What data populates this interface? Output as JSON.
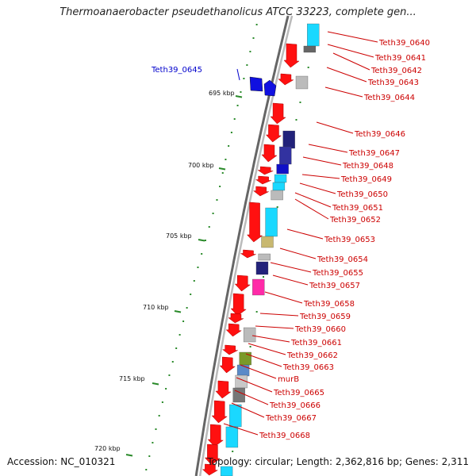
{
  "title": "Thermoanaerobacter pseudethanolicus ATCC 33223, complete gen...",
  "footer": {
    "accession": "Accession: NC_010321",
    "summary": "Topology: circular; Length: 2,362,816 bp; Genes: 2,311"
  },
  "colors": {
    "label_red": "#cc0000",
    "label_blue": "#0000cc",
    "gene_red": "#ff1010",
    "cyan": "#1ad8ff",
    "gray": "#bbbbbb",
    "navy": "#22227a",
    "magenta": "#ff2aa8",
    "olive": "#7a9a2a",
    "backbone": "#777777",
    "tick_green": "#2a8a2a"
  },
  "ticks": [
    {
      "label": "695 kbp"
    },
    {
      "label": "700 kbp"
    },
    {
      "label": "705 kbp"
    },
    {
      "label": "710 kbp"
    },
    {
      "label": "715 kbp"
    },
    {
      "label": "720 kbp"
    }
  ],
  "gene_labels": [
    {
      "text": "Teth39_0640",
      "color": "red"
    },
    {
      "text": "Teth39_0641",
      "color": "red"
    },
    {
      "text": "Teth39_0642",
      "color": "red"
    },
    {
      "text": "Teth39_0643",
      "color": "red"
    },
    {
      "text": "Teth39_0644",
      "color": "red"
    },
    {
      "text": "Teth39_0645",
      "color": "blue"
    },
    {
      "text": "Teth39_0646",
      "color": "red"
    },
    {
      "text": "Teth39_0647",
      "color": "red"
    },
    {
      "text": "Teth39_0648",
      "color": "red"
    },
    {
      "text": "Teth39_0649",
      "color": "red"
    },
    {
      "text": "Teth39_0650",
      "color": "red"
    },
    {
      "text": "Teth39_0651",
      "color": "red"
    },
    {
      "text": "Teth39_0652",
      "color": "red"
    },
    {
      "text": "Teth39_0653",
      "color": "red"
    },
    {
      "text": "Teth39_0654",
      "color": "red"
    },
    {
      "text": "Teth39_0655",
      "color": "red"
    },
    {
      "text": "Teth39_0657",
      "color": "red"
    },
    {
      "text": "Teth39_0658",
      "color": "red"
    },
    {
      "text": "Teth39_0659",
      "color": "red"
    },
    {
      "text": "Teth39_0660",
      "color": "red"
    },
    {
      "text": "Teth39_0661",
      "color": "red"
    },
    {
      "text": "Teth39_0662",
      "color": "red"
    },
    {
      "text": "Teth39_0663",
      "color": "red"
    },
    {
      "text": "murB",
      "color": "red"
    },
    {
      "text": "Teth39_0665",
      "color": "red"
    },
    {
      "text": "Teth39_0666",
      "color": "red"
    },
    {
      "text": "Teth39_0667",
      "color": "red"
    },
    {
      "text": "Teth39_0668",
      "color": "red"
    }
  ]
}
